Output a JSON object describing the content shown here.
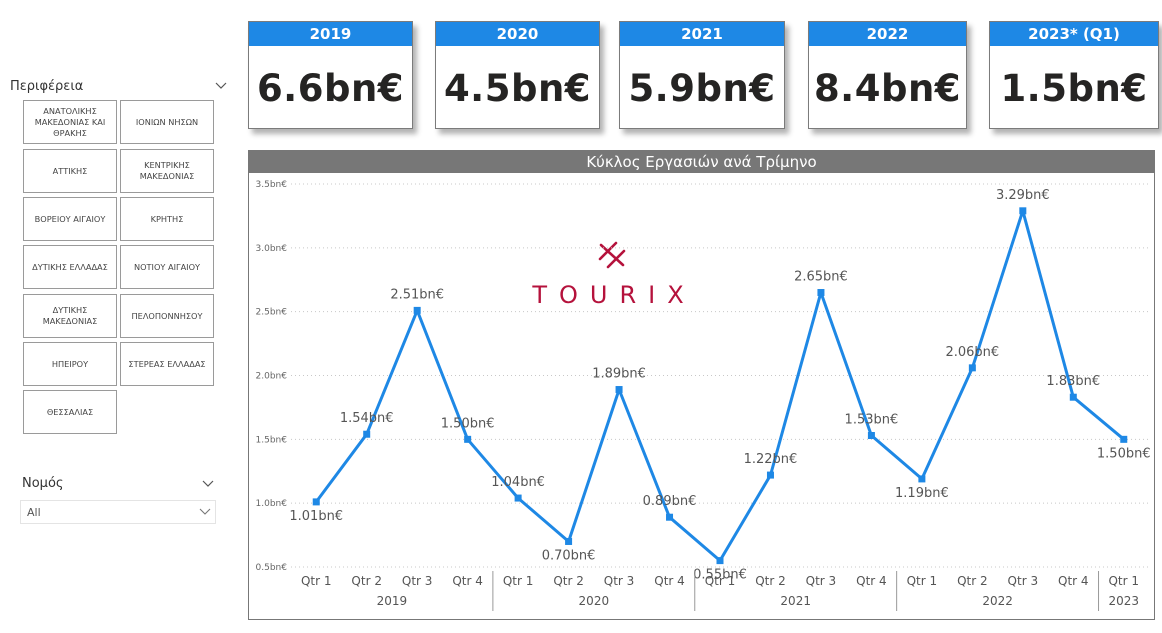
{
  "region_slicer": {
    "title": "Περιφέρεια",
    "items": [
      "ΑΝΑΤΟΛΙΚΗΣ ΜΑΚΕΔΟΝΙΑΣ ΚΑΙ ΘΡΑΚΗΣ",
      "ΙΟΝΙΩΝ ΝΗΣΩΝ",
      "ΑΤΤΙΚΗΣ",
      "ΚΕΝΤΡΙΚΗΣ ΜΑΚΕΔΟΝΙΑΣ",
      "ΒΟΡΕΙΟΥ ΑΙΓΑΙΟΥ",
      "ΚΡΗΤΗΣ",
      "ΔΥΤΙΚΗΣ ΕΛΛΑΔΑΣ",
      "ΝΟΤΙΟΥ ΑΙΓΑΙΟΥ",
      "ΔΥΤΙΚΗΣ ΜΑΚΕΔΟΝΙΑΣ",
      "ΠΕΛΟΠΟΝΝΗΣΟΥ",
      "ΗΠΕΙΡΟΥ",
      "ΣΤΕΡΕΑΣ ΕΛΛΑΔΑΣ",
      "ΘΕΣΣΑΛΙΑΣ"
    ]
  },
  "nomos_slicer": {
    "title": "Νομός",
    "selected": "All"
  },
  "kpis": [
    {
      "label": "2019",
      "value": "6.6bn€"
    },
    {
      "label": "2020",
      "value": "4.5bn€"
    },
    {
      "label": "2021",
      "value": "5.9bn€"
    },
    {
      "label": "2022",
      "value": "8.4bn€"
    },
    {
      "label": "2023* (Q1)",
      "value": "1.5bn€"
    }
  ],
  "logo": {
    "text": "TOURIX"
  },
  "colors": {
    "accent": "#1e88e5",
    "title_bar": "#777777",
    "logo": "#b5123c"
  },
  "chart_data": {
    "type": "line",
    "title": "Κύκλος Εργασιών ανά Τρίμηνο",
    "quarters": [
      "Qtr 1",
      "Qtr 2",
      "Qtr 3",
      "Qtr 4",
      "Qtr 1",
      "Qtr 2",
      "Qtr 3",
      "Qtr 4",
      "Qtr 1",
      "Qtr 2",
      "Qtr 3",
      "Qtr 4",
      "Qtr 1",
      "Qtr 2",
      "Qtr 3",
      "Qtr 4",
      "Qtr 1"
    ],
    "years": [
      {
        "label": "2019",
        "count": 4
      },
      {
        "label": "2020",
        "count": 4
      },
      {
        "label": "2021",
        "count": 4
      },
      {
        "label": "2022",
        "count": 4
      },
      {
        "label": "2023",
        "count": 1
      }
    ],
    "values": [
      1.01,
      1.54,
      2.51,
      1.5,
      1.04,
      0.7,
      1.89,
      0.89,
      0.55,
      1.22,
      2.65,
      1.53,
      1.19,
      2.06,
      3.29,
      1.83,
      1.5
    ],
    "labels": [
      "1.01bn€",
      "1.54bn€",
      "2.51bn€",
      "1.50bn€",
      "1.04bn€",
      "0.70bn€",
      "1.89bn€",
      "0.89bn€",
      "0.55bn€",
      "1.22bn€",
      "2.65bn€",
      "1.53bn€",
      "1.19bn€",
      "2.06bn€",
      "3.29bn€",
      "1.83bn€",
      "1.50bn€"
    ],
    "yticks": [
      0.5,
      1.0,
      1.5,
      2.0,
      2.5,
      3.0,
      3.5
    ],
    "ytick_labels": [
      "0.5bn€",
      "1.0bn€",
      "1.5bn€",
      "2.0bn€",
      "2.5bn€",
      "3.0bn€",
      "3.5bn€"
    ],
    "ylim": [
      0.5,
      3.5
    ],
    "grid": true
  }
}
